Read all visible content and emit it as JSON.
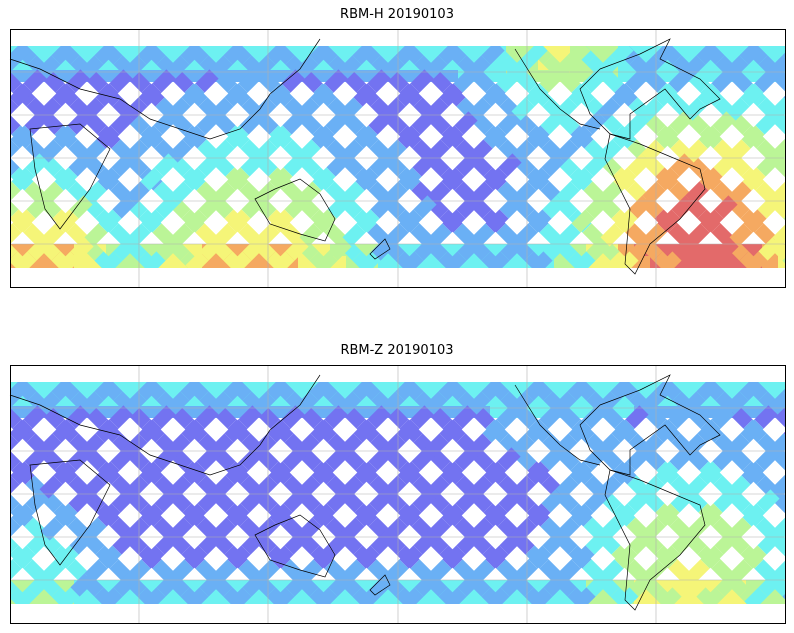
{
  "panels": [
    {
      "title": "RBM-H 20190103",
      "variable": "RBM-H",
      "date": "20190103",
      "hotspots": [
        [
          700,
          230,
          1.0,
          90
        ],
        [
          40,
          250,
          0.75,
          60
        ],
        [
          250,
          262,
          0.7,
          90
        ],
        [
          560,
          60,
          0.45,
          60
        ]
      ]
    },
    {
      "title": "RBM-Z 20190103",
      "variable": "RBM-Z",
      "date": "20190103",
      "hotspots": [
        [
          690,
          570,
          0.6,
          80
        ],
        [
          30,
          575,
          0.4,
          50
        ],
        [
          560,
          400,
          0.25,
          50
        ]
      ]
    }
  ],
  "colormap": [
    "#6464f0",
    "#5aa8f5",
    "#5ef0f0",
    "#b4f58c",
    "#f5f56a",
    "#f5a050",
    "#e05a5a"
  ]
}
